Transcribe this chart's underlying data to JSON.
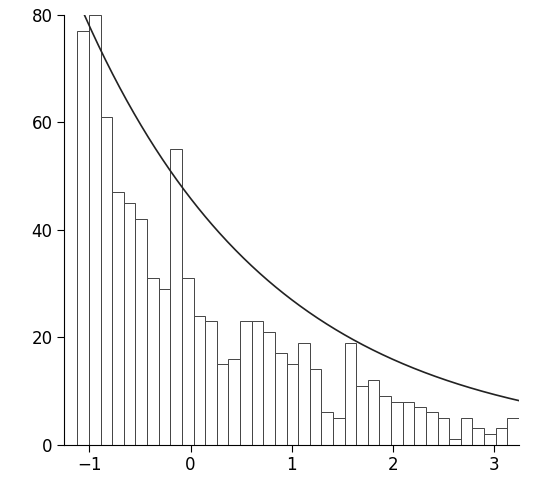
{
  "bar_heights": [
    77,
    80,
    61,
    47,
    45,
    42,
    31,
    29,
    55,
    31,
    24,
    23,
    15,
    16,
    23,
    23,
    21,
    17,
    15,
    19,
    14,
    6,
    5,
    19,
    11,
    12,
    9,
    8,
    8,
    7,
    6,
    5,
    1,
    5,
    3,
    2,
    3,
    5
  ],
  "x_start": -1.12,
  "bin_width": 0.115,
  "xlim": [
    -1.25,
    3.25
  ],
  "ylim": [
    0,
    80
  ],
  "xticks": [
    -1,
    0,
    1,
    2,
    3
  ],
  "yticks": [
    0,
    20,
    40,
    60,
    80
  ],
  "bar_color": "white",
  "bar_edgecolor": "#444444",
  "curve_color": "#222222",
  "curve_linewidth": 1.2,
  "curve_lambda": 0.53,
  "curve_amplitude": 83.0,
  "curve_x_offset": -1.12,
  "background_color": "white",
  "fig_width": 5.35,
  "fig_height": 4.94,
  "dpi": 100
}
